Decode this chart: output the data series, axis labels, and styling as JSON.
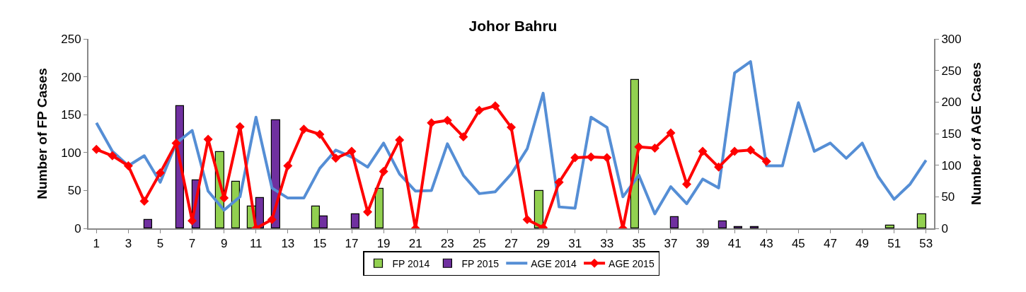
{
  "chart_data": {
    "type": "bar",
    "title": "Johor Bahru",
    "ylabel": "Number of FP Cases",
    "y2label": "Number of AGE Cases",
    "x": [
      1,
      2,
      3,
      4,
      5,
      6,
      7,
      8,
      9,
      10,
      11,
      12,
      13,
      14,
      15,
      16,
      17,
      18,
      19,
      20,
      21,
      22,
      23,
      24,
      25,
      26,
      27,
      28,
      29,
      30,
      31,
      32,
      33,
      34,
      35,
      36,
      37,
      38,
      39,
      40,
      41,
      42,
      43,
      44,
      45,
      46,
      47,
      48,
      49,
      50,
      51,
      52,
      53
    ],
    "xlim": [
      0.5,
      53.5
    ],
    "xticks": [
      1,
      3,
      5,
      7,
      9,
      11,
      13,
      15,
      17,
      19,
      21,
      23,
      25,
      27,
      29,
      31,
      33,
      35,
      37,
      39,
      41,
      43,
      45,
      47,
      49,
      51,
      53
    ],
    "ylim": [
      0,
      250
    ],
    "yticks": [
      0,
      50,
      100,
      150,
      200,
      250
    ],
    "y2lim": [
      0,
      300
    ],
    "y2ticks": [
      0,
      50,
      100,
      150,
      200,
      250,
      300
    ],
    "legend": "bottom",
    "series": [
      {
        "name": "FP 2014",
        "color": "#92d050",
        "values": [
          null,
          null,
          null,
          null,
          null,
          null,
          null,
          null,
          101,
          62,
          29,
          null,
          null,
          null,
          29,
          null,
          null,
          null,
          52,
          null,
          null,
          null,
          null,
          null,
          null,
          null,
          null,
          null,
          49,
          null,
          null,
          null,
          null,
          null,
          196,
          null,
          null,
          null,
          null,
          null,
          null,
          null,
          null,
          null,
          null,
          null,
          null,
          null,
          null,
          null,
          4,
          null,
          19
        ]
      },
      {
        "name": "FP 2015",
        "color": "#7030a0",
        "values": [
          null,
          null,
          null,
          11,
          null,
          161,
          63,
          null,
          null,
          null,
          40,
          143,
          null,
          null,
          16,
          null,
          19,
          null,
          null,
          null,
          null,
          null,
          null,
          null,
          null,
          null,
          null,
          null,
          null,
          null,
          null,
          null,
          null,
          null,
          null,
          null,
          15,
          null,
          null,
          9,
          2,
          2,
          null,
          null,
          null,
          null,
          null,
          null,
          null,
          null,
          null,
          null,
          null
        ]
      },
      {
        "name": "AGE 2014",
        "type": "line",
        "axis": "y2",
        "color": "#558ed5",
        "marker": "none",
        "values": [
          167,
          122,
          99,
          115,
          73,
          135,
          155,
          59,
          29,
          50,
          176,
          64,
          48,
          48,
          95,
          124,
          113,
          97,
          135,
          86,
          59,
          60,
          134,
          84,
          55,
          58,
          86,
          126,
          214,
          34,
          32,
          176,
          160,
          50,
          84,
          23,
          66,
          39,
          78,
          64,
          246,
          264,
          99,
          99,
          199,
          122,
          135,
          111,
          135,
          82,
          46,
          70,
          108
        ]
      },
      {
        "name": "AGE 2015",
        "type": "line",
        "axis": "y2",
        "color": "#ff0000",
        "marker": "diamond",
        "values": [
          125,
          115,
          99,
          43,
          88,
          135,
          12,
          141,
          48,
          161,
          0,
          14,
          99,
          157,
          149,
          111,
          122,
          26,
          90,
          140,
          0,
          167,
          171,
          145,
          187,
          194,
          160,
          14,
          1,
          73,
          112,
          113,
          112,
          0,
          129,
          127,
          151,
          70,
          122,
          97,
          122,
          124,
          106,
          null,
          null,
          null,
          null,
          null,
          null,
          null,
          null,
          null,
          null
        ]
      }
    ]
  }
}
